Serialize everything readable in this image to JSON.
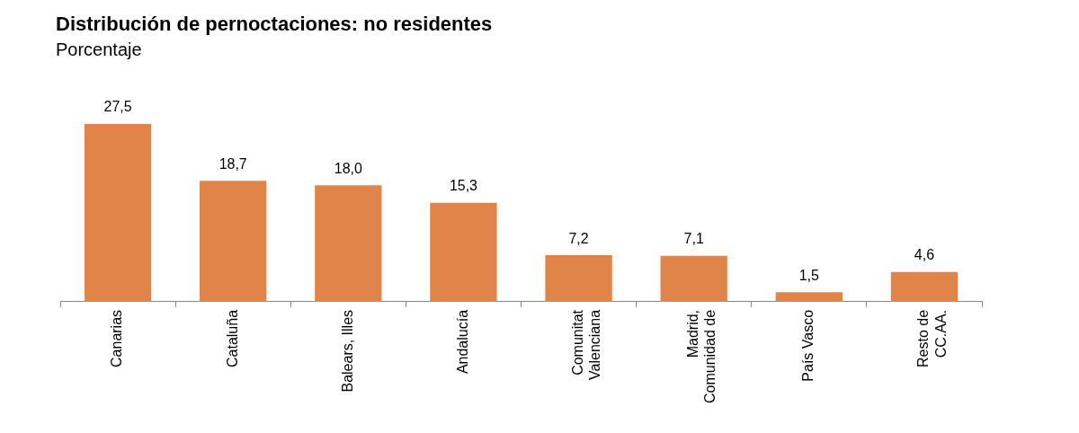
{
  "chart_data": {
    "type": "bar",
    "title": "Distribución de pernoctaciones: no residentes",
    "subtitle": "Porcentaje",
    "categories": [
      "Canarias",
      "Cataluña",
      "Balears, Illes",
      "Andalucía",
      "Comunitat\nValenciana",
      "Madrid,\nComunidad de",
      "País Vasco",
      "Resto de\nCC.AA."
    ],
    "values": [
      27.5,
      18.7,
      18.0,
      15.3,
      7.2,
      7.1,
      1.5,
      4.6
    ],
    "value_labels": [
      "27,5",
      "18,7",
      "18,0",
      "15,3",
      "7,2",
      "7,1",
      "1,5",
      "4,6"
    ],
    "color": "#e0844a",
    "grid": false,
    "legend": false
  }
}
